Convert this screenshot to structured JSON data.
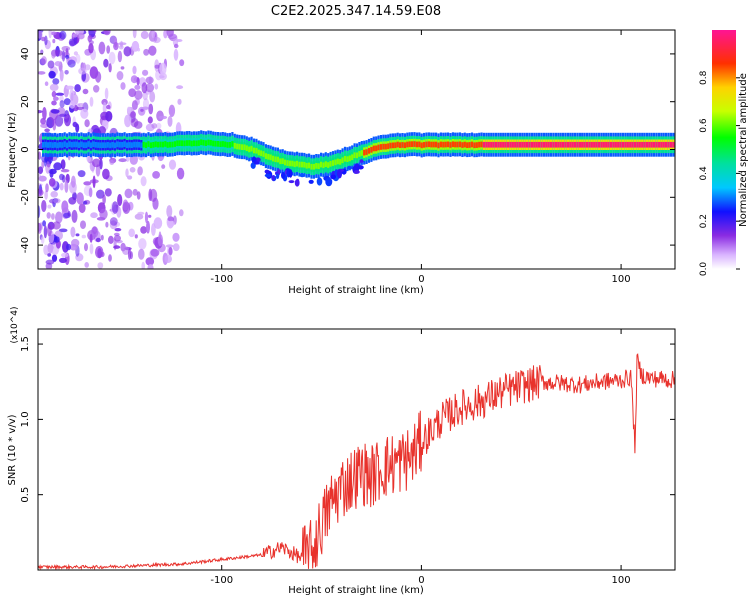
{
  "title": "C2E2.2025.347.14.59.E08",
  "chart_data": [
    {
      "type": "heatmap",
      "xlabel": "Height of straight line (km)",
      "ylabel": "Frequency (Hz)",
      "xlim": [
        -192,
        127
      ],
      "ylim": [
        -50,
        50
      ],
      "x_ticks": [
        -100,
        0,
        100
      ],
      "y_ticks": [
        -40,
        -20,
        0,
        20,
        40
      ],
      "colorbar": {
        "label": "Normalized spectral amplitude",
        "range": [
          0,
          1
        ],
        "ticks": [
          0.0,
          0.2,
          0.4,
          0.6,
          0.8
        ]
      },
      "ridge_frequency_hz": {
        "x": [
          -192,
          -150,
          -130,
          -110,
          -95,
          -85,
          -75,
          -65,
          -55,
          -45,
          -35,
          -25,
          -15,
          -5,
          0,
          10,
          30,
          60,
          100,
          127
        ],
        "y": [
          2,
          2,
          2,
          3,
          2,
          0,
          -4,
          -6,
          -7,
          -6,
          -3,
          0,
          2,
          2,
          2,
          2,
          2,
          2,
          2,
          2
        ]
      },
      "noise_region_x": [
        -192,
        -120
      ]
    },
    {
      "type": "line",
      "xlabel": "Height of straight line (km)",
      "ylabel": "SNR (10 * v/v)",
      "y_scale_label": "(x10^4)",
      "xlim": [
        -192,
        127
      ],
      "ylim": [
        0,
        1.6
      ],
      "x_ticks": [
        -100,
        0,
        100
      ],
      "y_ticks": [
        0.5,
        1.0,
        1.5
      ],
      "series": [
        {
          "name": "SNR",
          "color": "#e8322c",
          "x": [
            -192,
            -160,
            -140,
            -120,
            -100,
            -80,
            -70,
            -60,
            -55,
            -50,
            -45,
            -40,
            -35,
            -30,
            -25,
            -20,
            -15,
            -10,
            -5,
            0,
            10,
            20,
            30,
            40,
            50,
            60,
            70,
            80,
            90,
            100,
            105,
            107,
            108,
            110,
            115,
            120,
            127
          ],
          "y": [
            0.02,
            0.02,
            0.03,
            0.04,
            0.07,
            0.1,
            0.15,
            0.08,
            0.12,
            0.3,
            0.45,
            0.55,
            0.6,
            0.65,
            0.62,
            0.68,
            0.7,
            0.72,
            0.75,
            0.85,
            1.0,
            1.08,
            1.12,
            1.18,
            1.22,
            1.25,
            1.24,
            1.23,
            1.25,
            1.26,
            1.28,
            0.8,
            1.4,
            1.3,
            1.27,
            1.27,
            1.26
          ]
        }
      ]
    }
  ]
}
